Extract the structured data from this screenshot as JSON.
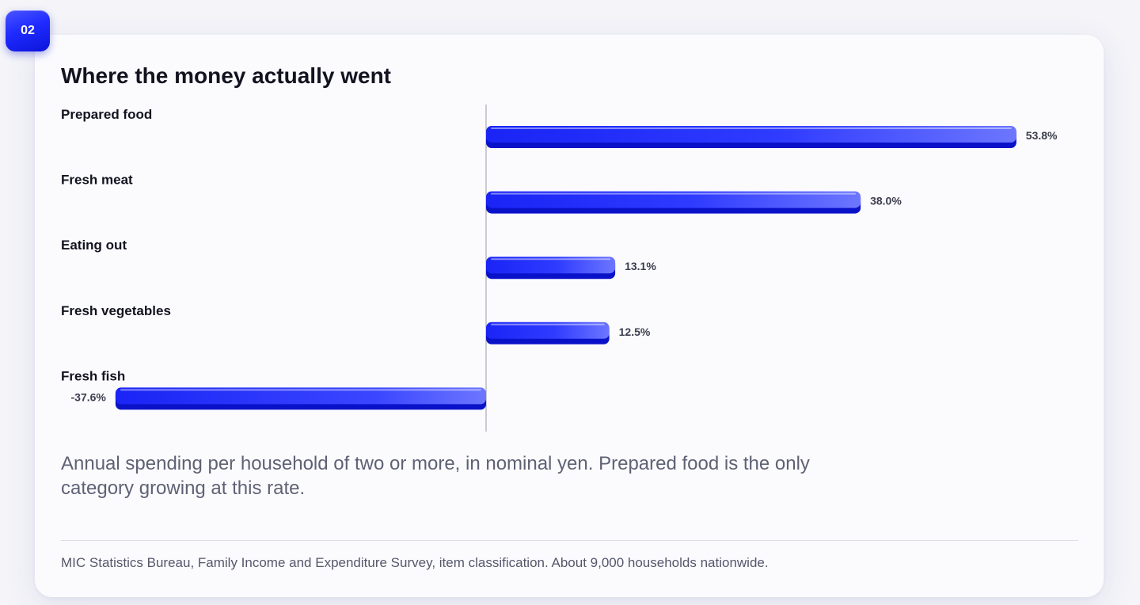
{
  "badge": {
    "label": "02"
  },
  "title": "Where the money actually went",
  "caption": "Annual spending per household of two or more, in nominal yen. Prepared food is the only category growing at this rate.",
  "source": "MIC Statistics Bureau, Family Income and Expenditure Survey, item classification. About 9,000 households nationwide.",
  "colors": {
    "accent": "#1f2bff",
    "accent_dark": "#0a12c9",
    "accent_light": "#6f79ff",
    "title_text": "#12131f",
    "muted_text": "#5f6174"
  },
  "chart_data": {
    "type": "bar",
    "orientation": "horizontal",
    "categories": [
      "Prepared food",
      "Fresh meat",
      "Eating out",
      "Fresh vegetables",
      "Fresh fish"
    ],
    "values": [
      53.8,
      38.0,
      13.1,
      12.5,
      -37.6
    ],
    "value_labels": [
      "53.8%",
      "38.0%",
      "13.1%",
      "12.5%",
      "-37.6%"
    ],
    "title": "Where the money actually went",
    "xlabel": "",
    "ylabel": "",
    "grid": false,
    "zero_line": true
  }
}
